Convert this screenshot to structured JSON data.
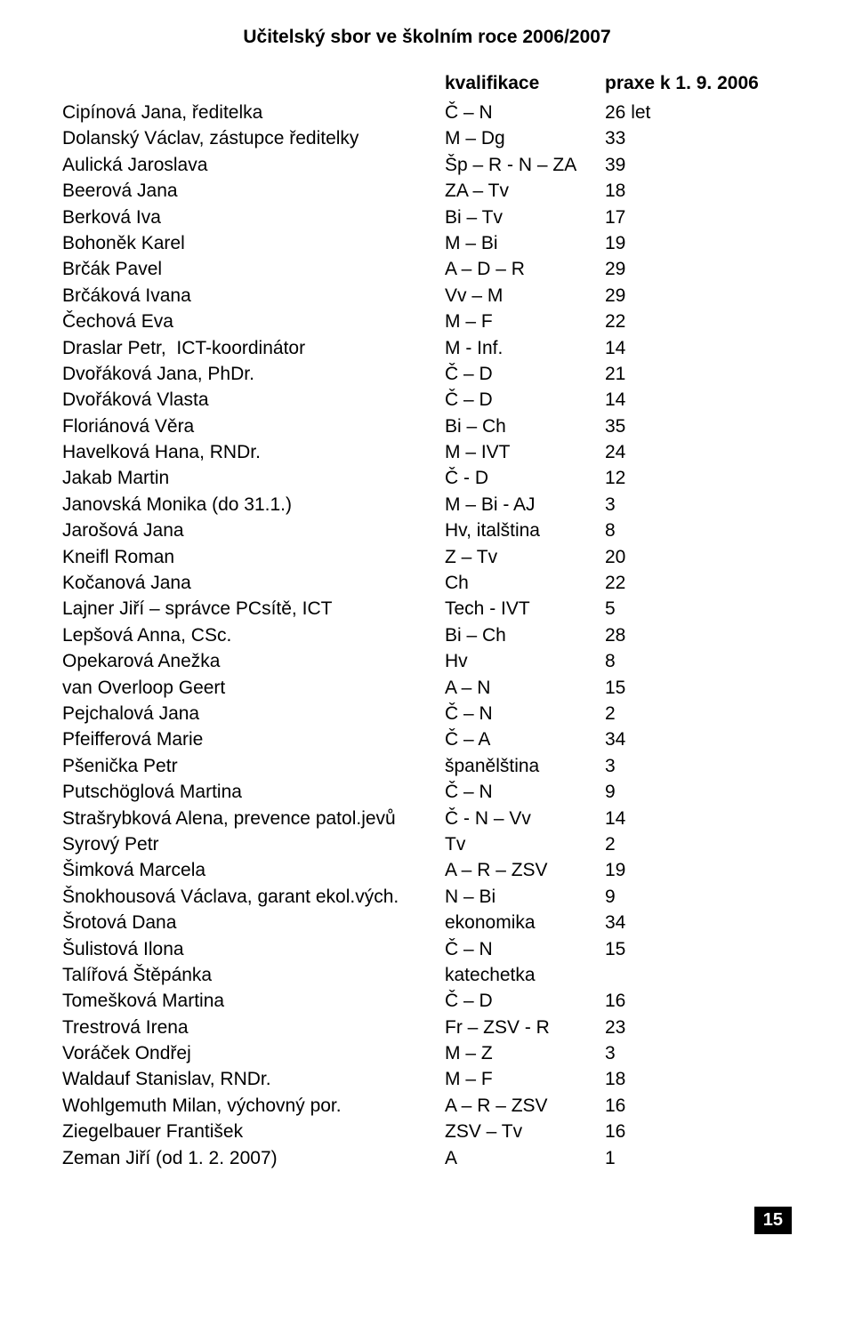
{
  "title": "Učitelský sbor ve školním roce 2006/2007",
  "header": {
    "name": " ",
    "qual": "kvalifikace",
    "prax": "praxe k 1. 9. 2006"
  },
  "rows": [
    {
      "name": "Cipínová Jana, ředitelka",
      "qual": "Č – N",
      "prax": "26 let"
    },
    {
      "name": "Dolanský Václav, zástupce ředitelky",
      "qual": "M – Dg",
      "prax": "33"
    },
    {
      "name": "Aulická Jaroslava",
      "qual": "Šp – R - N – ZA",
      "prax": "39"
    },
    {
      "name": "Beerová Jana",
      "qual": "ZA – Tv",
      "prax": "18"
    },
    {
      "name": "Berková Iva",
      "qual": "Bi – Tv",
      "prax": "17"
    },
    {
      "name": "Bohoněk Karel",
      "qual": "M – Bi",
      "prax": "19"
    },
    {
      "name": "Brčák Pavel",
      "qual": "A – D – R",
      "prax": "29"
    },
    {
      "name": "Brčáková Ivana",
      "qual": "Vv – M",
      "prax": "29"
    },
    {
      "name": "Čechová Eva",
      "qual": "M – F",
      "prax": "22"
    },
    {
      "name": "Draslar Petr,  ICT-koordinátor",
      "qual": "M - Inf.",
      "prax": "14"
    },
    {
      "name": "Dvořáková Jana, PhDr.",
      "qual": "Č – D",
      "prax": "21"
    },
    {
      "name": "Dvořáková Vlasta",
      "qual": "Č – D",
      "prax": "14"
    },
    {
      "name": "Floriánová Věra",
      "qual": "Bi – Ch",
      "prax": "35"
    },
    {
      "name": "Havelková Hana, RNDr.",
      "qual": "M – IVT",
      "prax": "24"
    },
    {
      "name": "Jakab Martin",
      "qual": "Č - D",
      "prax": "12"
    },
    {
      "name": "Janovská Monika (do 31.1.)",
      "qual": "M – Bi - AJ",
      "prax": "3"
    },
    {
      "name": "Jarošová Jana",
      "qual": "Hv, italština",
      "prax": "8"
    },
    {
      "name": "Kneifl Roman",
      "qual": "Z – Tv",
      "prax": "20"
    },
    {
      "name": "Kočanová Jana",
      "qual": "Ch",
      "prax": "22"
    },
    {
      "name": "Lajner Jiří – správce PCsítě, ICT",
      "qual": "Tech - IVT",
      "prax": "5"
    },
    {
      "name": "Lepšová Anna, CSc.",
      "qual": "Bi – Ch",
      "prax": "28"
    },
    {
      "name": "Opekarová Anežka",
      "qual": "Hv",
      "prax": "8"
    },
    {
      "name": "van Overloop Geert",
      "qual": "A – N",
      "prax": "15"
    },
    {
      "name": "Pejchalová Jana",
      "qual": "Č – N",
      "prax": "2"
    },
    {
      "name": "Pfeifferová Marie",
      "qual": "Č – A",
      "prax": "34"
    },
    {
      "name": "Pšenička Petr",
      "qual": "španělština",
      "prax": "3"
    },
    {
      "name": "Putschöglová Martina",
      "qual": "Č – N",
      "prax": "9"
    },
    {
      "name": "Strašrybková Alena, prevence patol.jevů",
      "qual": "Č - N – Vv",
      "prax": "14"
    },
    {
      "name": "Syrový Petr",
      "qual": "Tv",
      "prax": "2"
    },
    {
      "name": "Šimková Marcela",
      "qual": "A – R – ZSV",
      "prax": "19"
    },
    {
      "name": "Šnokhousová Václava, garant ekol.vých.",
      "qual": "N – Bi",
      "prax": "9"
    },
    {
      "name": "Šrotová Dana",
      "qual": "ekonomika",
      "prax": "34"
    },
    {
      "name": "Šulistová Ilona",
      "qual": "Č – N",
      "prax": "15"
    },
    {
      "name": "Talířová Štěpánka",
      "qual": "katechetka",
      "prax": ""
    },
    {
      "name": "Tomešková Martina",
      "qual": "Č – D",
      "prax": "16"
    },
    {
      "name": "Trestrová Irena",
      "qual": "Fr – ZSV - R",
      "prax": "23"
    },
    {
      "name": "Voráček Ondřej",
      "qual": "M – Z",
      "prax": "3"
    },
    {
      "name": "Waldauf Stanislav, RNDr.",
      "qual": "M – F",
      "prax": "18"
    },
    {
      "name": "Wohlgemuth Milan, výchovný por.",
      "qual": "A – R – ZSV",
      "prax": "16"
    },
    {
      "name": "Ziegelbauer František",
      "qual": "ZSV – Tv",
      "prax": "16"
    },
    {
      "name": "Zeman Jiří (od 1. 2. 2007)",
      "qual": "A",
      "prax": "1"
    }
  ],
  "page_number": "15"
}
